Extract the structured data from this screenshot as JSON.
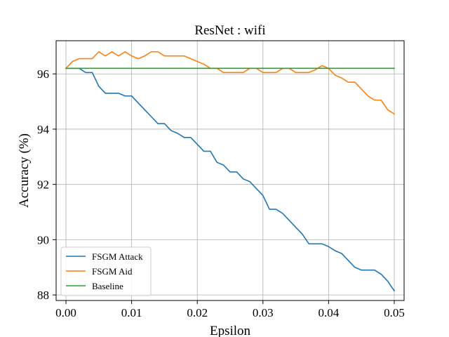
{
  "chart_data": {
    "type": "line",
    "title": "ResNet : wifi",
    "xlabel": "Epsilon",
    "ylabel": "Accuracy (%)",
    "xlim": [
      -0.0015,
      0.0515
    ],
    "ylim": [
      87.8,
      97.2
    ],
    "xticks": [
      0.0,
      0.01,
      0.02,
      0.03,
      0.04,
      0.05
    ],
    "xtick_labels": [
      "0.00",
      "0.01",
      "0.02",
      "0.03",
      "0.04",
      "0.05"
    ],
    "yticks": [
      88,
      90,
      92,
      94,
      96
    ],
    "ytick_labels": [
      "88",
      "90",
      "92",
      "94",
      "96"
    ],
    "grid": true,
    "legend_position": "lower-left",
    "x": [
      0.0,
      0.001,
      0.002,
      0.003,
      0.004,
      0.005,
      0.006,
      0.007,
      0.008,
      0.009,
      0.01,
      0.011,
      0.012,
      0.013,
      0.014,
      0.015,
      0.016,
      0.017,
      0.018,
      0.019,
      0.02,
      0.021,
      0.022,
      0.023,
      0.024,
      0.025,
      0.026,
      0.027,
      0.028,
      0.029,
      0.03,
      0.031,
      0.032,
      0.033,
      0.034,
      0.035,
      0.036,
      0.037,
      0.038,
      0.039,
      0.04,
      0.041,
      0.042,
      0.043,
      0.044,
      0.045,
      0.046,
      0.047,
      0.048,
      0.049,
      0.05
    ],
    "series": [
      {
        "name": "FSGM Attack",
        "color": "#1f77b4",
        "values": [
          96.2,
          96.2,
          96.2,
          96.05,
          96.05,
          95.55,
          95.3,
          95.3,
          95.3,
          95.2,
          95.2,
          94.95,
          94.7,
          94.45,
          94.2,
          94.2,
          93.95,
          93.85,
          93.7,
          93.7,
          93.45,
          93.2,
          93.2,
          92.8,
          92.7,
          92.45,
          92.45,
          92.2,
          92.1,
          91.85,
          91.6,
          91.1,
          91.1,
          90.95,
          90.7,
          90.45,
          90.2,
          89.85,
          89.85,
          89.85,
          89.75,
          89.6,
          89.5,
          89.25,
          89.0,
          88.9,
          88.9,
          88.9,
          88.75,
          88.5,
          88.15
        ]
      },
      {
        "name": "FSGM Aid",
        "color": "#ff7f0e",
        "values": [
          96.2,
          96.45,
          96.55,
          96.55,
          96.55,
          96.8,
          96.65,
          96.8,
          96.65,
          96.8,
          96.65,
          96.55,
          96.65,
          96.8,
          96.8,
          96.65,
          96.65,
          96.65,
          96.65,
          96.55,
          96.45,
          96.35,
          96.2,
          96.2,
          96.05,
          96.05,
          96.05,
          96.05,
          96.2,
          96.2,
          96.05,
          96.05,
          96.05,
          96.2,
          96.2,
          96.05,
          96.05,
          96.05,
          96.15,
          96.3,
          96.2,
          95.95,
          95.85,
          95.7,
          95.7,
          95.45,
          95.2,
          95.05,
          95.05,
          94.7,
          94.55
        ]
      },
      {
        "name": "Baseline",
        "color": "#2ca02c",
        "values": [
          96.2,
          96.2,
          96.2,
          96.2,
          96.2,
          96.2,
          96.2,
          96.2,
          96.2,
          96.2,
          96.2,
          96.2,
          96.2,
          96.2,
          96.2,
          96.2,
          96.2,
          96.2,
          96.2,
          96.2,
          96.2,
          96.2,
          96.2,
          96.2,
          96.2,
          96.2,
          96.2,
          96.2,
          96.2,
          96.2,
          96.2,
          96.2,
          96.2,
          96.2,
          96.2,
          96.2,
          96.2,
          96.2,
          96.2,
          96.2,
          96.2,
          96.2,
          96.2,
          96.2,
          96.2,
          96.2,
          96.2,
          96.2,
          96.2,
          96.2,
          96.2
        ]
      }
    ]
  }
}
